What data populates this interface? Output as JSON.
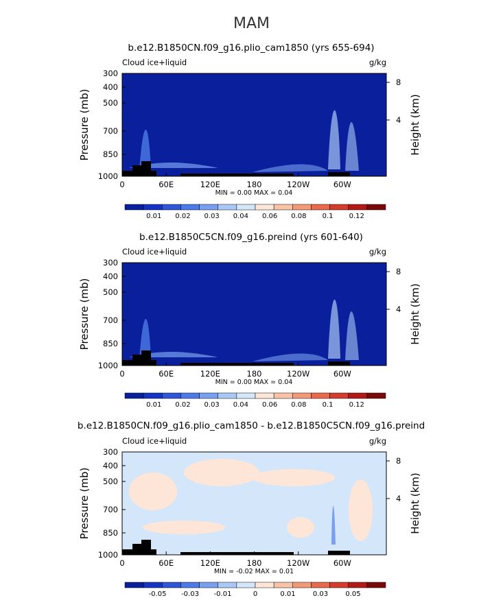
{
  "figure": {
    "title": "MAM"
  },
  "chart_data": [
    {
      "type": "heatmap",
      "title": "b.e12.B1850CN.f09_g16.plio_cam1850 (yrs 655-694)",
      "left_label": "Cloud ice+liquid",
      "right_label": "g/kg",
      "ylabel": "Pressure (mb)",
      "ylabel_right": "Height (km)",
      "xticks": [
        "0",
        "60E",
        "120E",
        "180",
        "120W",
        "60W"
      ],
      "yticks": [
        "300",
        "400",
        "500",
        "700",
        "850",
        "1000"
      ],
      "yticks_right": [
        "8",
        "4"
      ],
      "stats": "MIN =    0.00   MAX =    0.04",
      "colorbar": {
        "labels": [
          "0.01",
          "0.02",
          "0.03",
          "0.04",
          "0.06",
          "0.08",
          "0.1",
          "0.12"
        ],
        "colors": [
          "#0a1f9c",
          "#1634c2",
          "#2f56d6",
          "#4c7ae6",
          "#78a0ef",
          "#a9c8f5",
          "#d4e6fa",
          "#fde6d8",
          "#f9c3a8",
          "#f29a78",
          "#e8694c",
          "#d43d2d",
          "#b01a17",
          "#7a0a0a"
        ]
      },
      "background_color": "#0a1f9c"
    },
    {
      "type": "heatmap",
      "title": "b.e12.B1850C5CN.f09_g16.preind (yrs 601-640)",
      "left_label": "Cloud ice+liquid",
      "right_label": "g/kg",
      "ylabel": "Pressure (mb)",
      "ylabel_right": "Height (km)",
      "xticks": [
        "0",
        "60E",
        "120E",
        "180",
        "120W",
        "60W"
      ],
      "yticks": [
        "300",
        "400",
        "500",
        "700",
        "850",
        "1000"
      ],
      "yticks_right": [
        "8",
        "4"
      ],
      "stats": "MIN =    0.00   MAX =    0.04",
      "colorbar": {
        "labels": [
          "0.01",
          "0.02",
          "0.03",
          "0.04",
          "0.06",
          "0.08",
          "0.1",
          "0.12"
        ],
        "colors": [
          "#0a1f9c",
          "#1634c2",
          "#2f56d6",
          "#4c7ae6",
          "#78a0ef",
          "#a9c8f5",
          "#d4e6fa",
          "#fde6d8",
          "#f9c3a8",
          "#f29a78",
          "#e8694c",
          "#d43d2d",
          "#b01a17",
          "#7a0a0a"
        ]
      },
      "background_color": "#0a1f9c"
    },
    {
      "type": "heatmap",
      "title": "b.e12.B1850CN.f09_g16.plio_cam1850 - b.e12.B1850C5CN.f09_g16.preind",
      "left_label": "Cloud ice+liquid",
      "right_label": "g/kg",
      "ylabel": "Pressure (mb)",
      "ylabel_right": "Height (km)",
      "xticks": [
        "0",
        "60E",
        "120E",
        "180",
        "120W",
        "60W"
      ],
      "yticks": [
        "300",
        "400",
        "500",
        "700",
        "850",
        "1000"
      ],
      "yticks_right": [
        "8",
        "4"
      ],
      "stats": "MIN =   -0.02   MAX =    0.01",
      "colorbar": {
        "labels": [
          "-0.05",
          "-0.03",
          "-0.01",
          "0",
          "0.01",
          "0.03",
          "0.05"
        ],
        "colors": [
          "#0a1f9c",
          "#1634c2",
          "#2f56d6",
          "#4c7ae6",
          "#78a0ef",
          "#a9c8f5",
          "#d4e6fa",
          "#fde6d8",
          "#f9c3a8",
          "#f29a78",
          "#e8694c",
          "#d43d2d",
          "#b01a17",
          "#7a0a0a"
        ]
      },
      "background_color": "#d4e6fa"
    }
  ]
}
